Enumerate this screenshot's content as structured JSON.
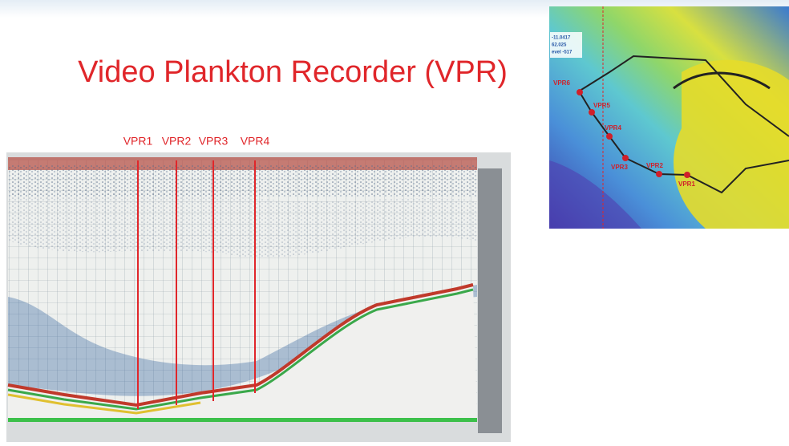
{
  "slide": {
    "title": "Video Plankton Recorder (VPR)",
    "echogram_labels": [
      "VPR1",
      "VPR2",
      "VPR3",
      "VPR4"
    ],
    "map": {
      "info": [
        "-11.0417",
        "62.025",
        "evel -517"
      ],
      "stations": [
        "VPR6",
        "VPR5",
        "VPR4",
        "VPR3",
        "VPR2",
        "VPR1"
      ]
    }
  }
}
